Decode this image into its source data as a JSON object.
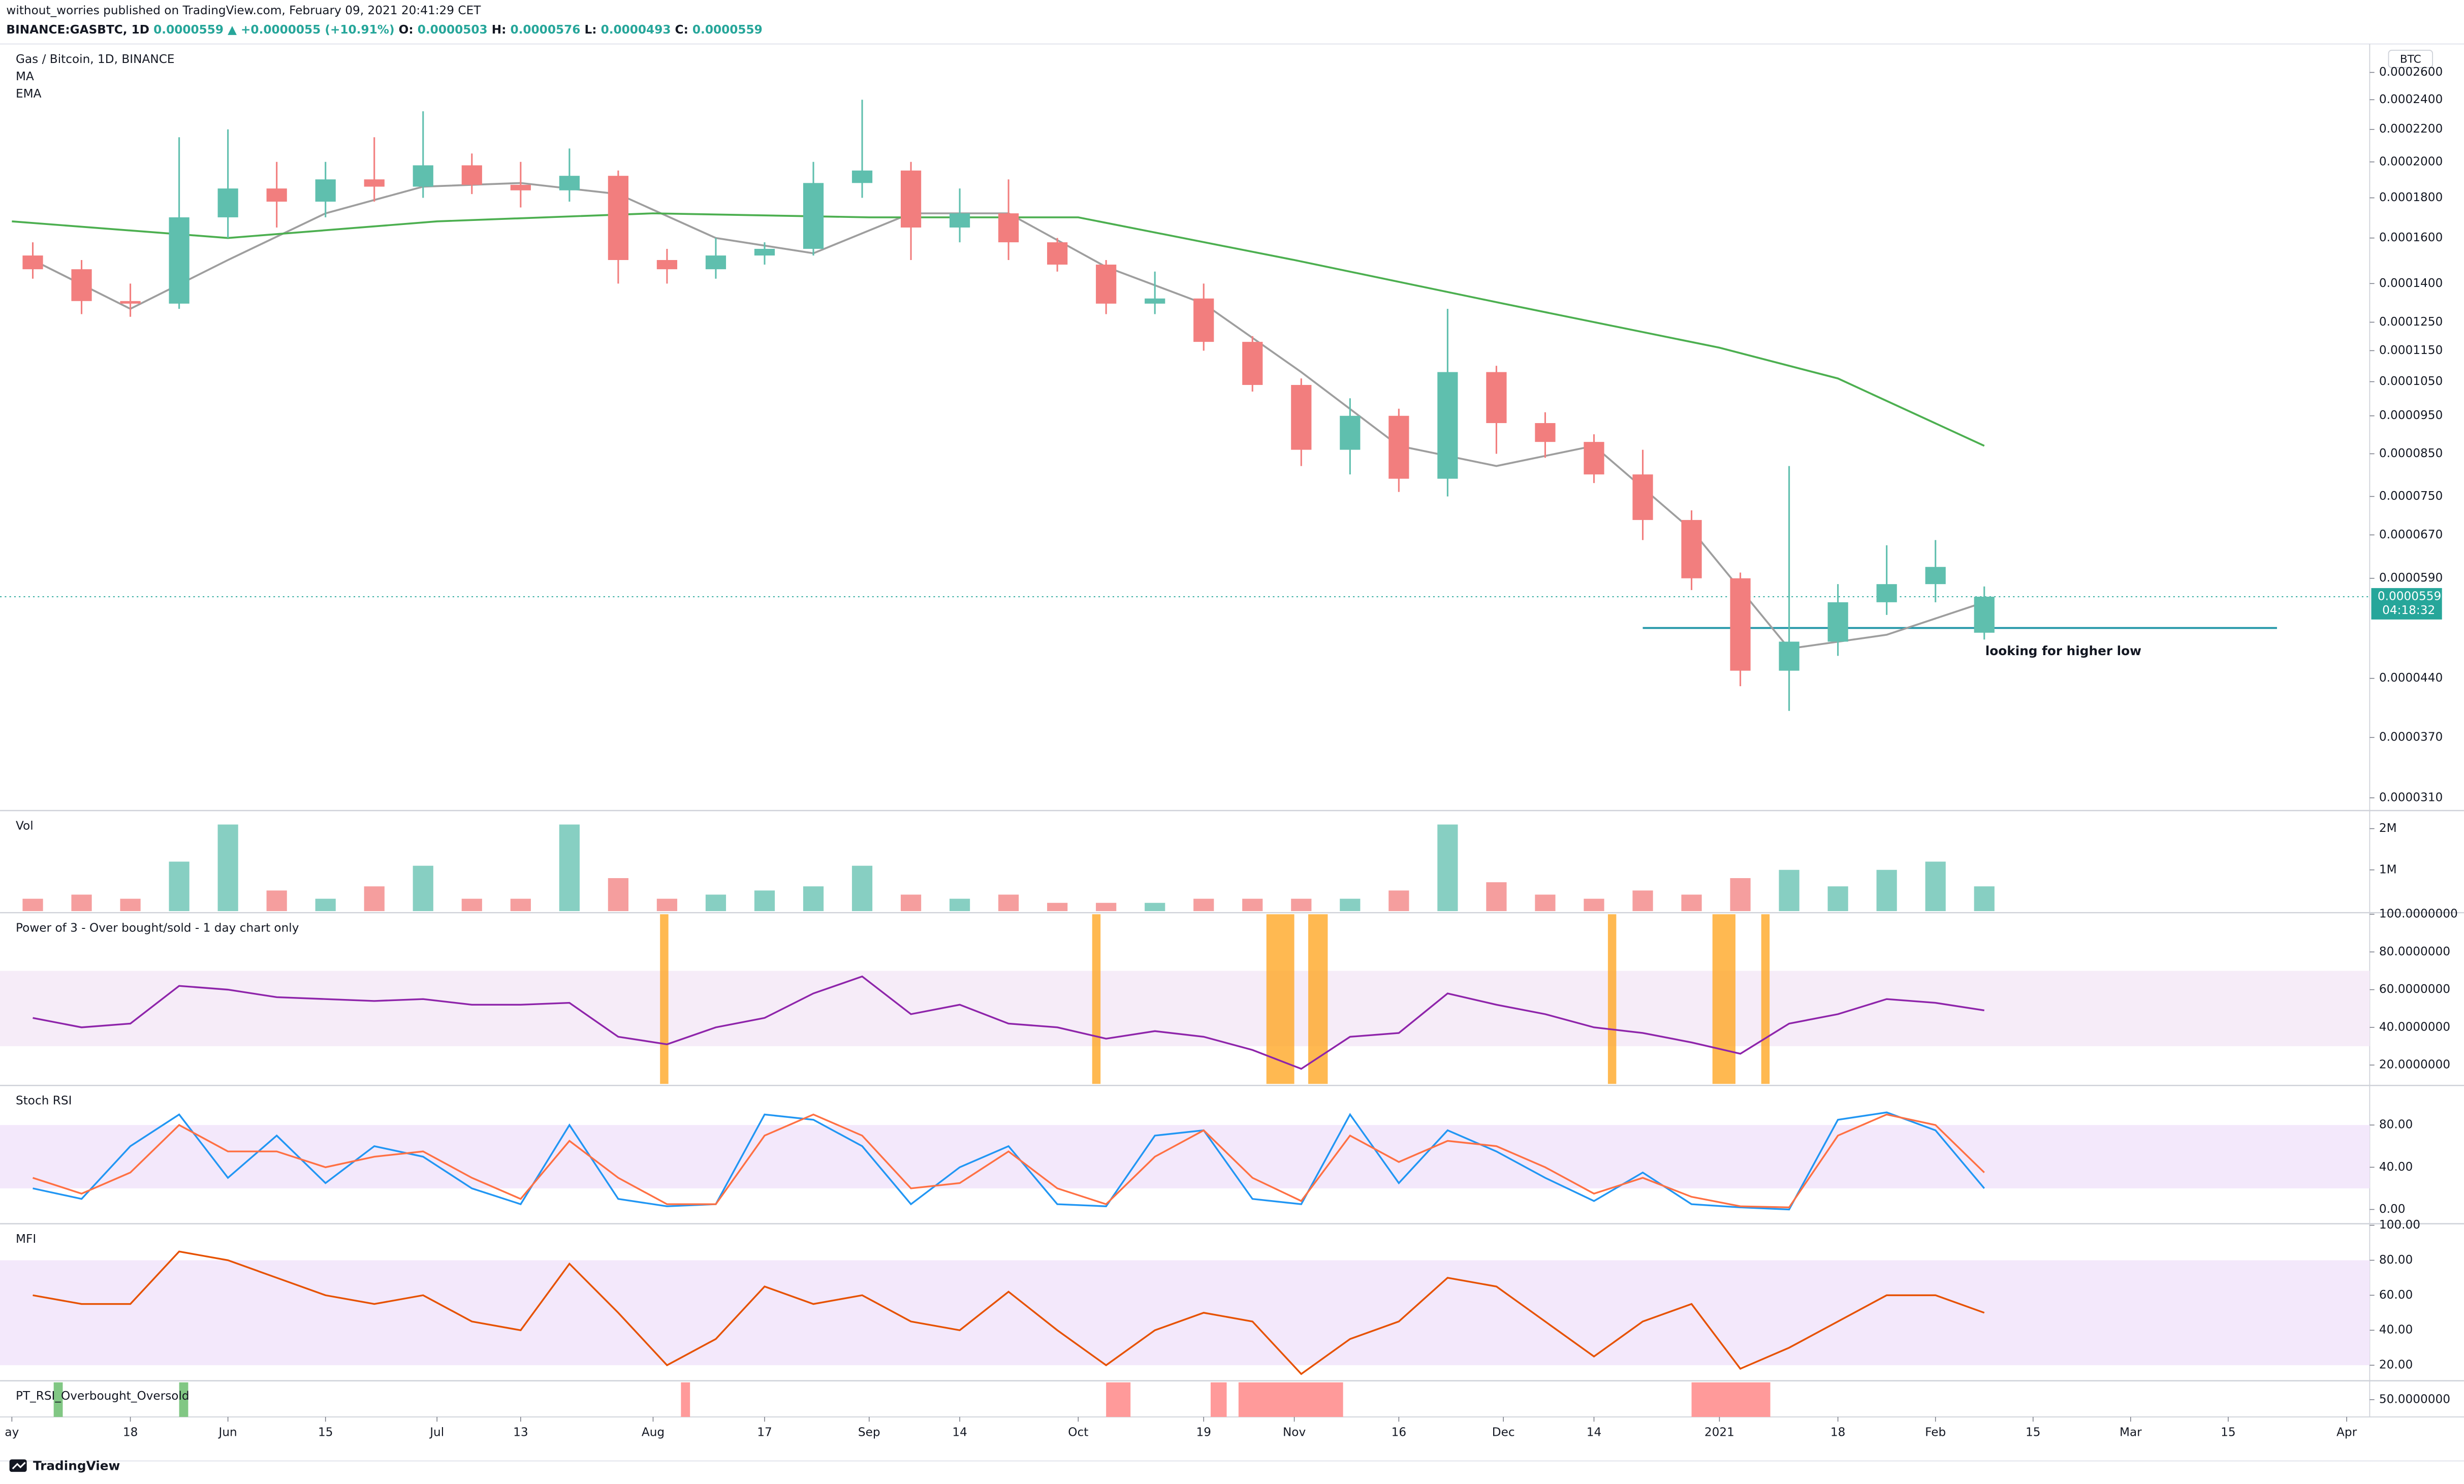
{
  "header": {
    "publisher": "without_worries published on TradingView.com, February 09, 2021 20:41:29 CET",
    "symbol": "BINANCE:GASBTC, 1D",
    "last": "0.0000559",
    "change": "▲ +0.0000055 (+10.91%)",
    "ohlc": [
      "O:",
      "0.0000503",
      "H:",
      "0.0000576",
      "L:",
      "0.0000493",
      "C:",
      "0.0000559"
    ]
  },
  "footer": {
    "logo": "TradingView"
  },
  "chart_data": {
    "type": "candlestick",
    "title": "Gas / Bitcoin, 1D, BINANCE",
    "currency": "BTC",
    "log_scale": true,
    "ylim": [
      3e-05,
      0.00028
    ],
    "yticks": [
      {
        "value": 0.00026,
        "label": "0.0002600"
      },
      {
        "value": 0.00024,
        "label": "0.0002400"
      },
      {
        "value": 0.00022,
        "label": "0.0002200"
      },
      {
        "value": 0.0002,
        "label": "0.0002000"
      },
      {
        "value": 0.00018,
        "label": "0.0001800"
      },
      {
        "value": 0.00016,
        "label": "0.0001600"
      },
      {
        "value": 0.00014,
        "label": "0.0001400"
      },
      {
        "value": 0.000125,
        "label": "0.0001250"
      },
      {
        "value": 0.000115,
        "label": "0.0001150"
      },
      {
        "value": 0.000105,
        "label": "0.0001050"
      },
      {
        "value": 9.5e-05,
        "label": "0.0000950"
      },
      {
        "value": 8.5e-05,
        "label": "0.0000850"
      },
      {
        "value": 7.5e-05,
        "label": "0.0000750"
      },
      {
        "value": 6.7e-05,
        "label": "0.0000670"
      },
      {
        "value": 5.9e-05,
        "label": "0.0000590"
      },
      {
        "value": 4.4e-05,
        "label": "0.0000440"
      },
      {
        "value": 3.7e-05,
        "label": "0.0000370"
      },
      {
        "value": 3.1e-05,
        "label": "0.0000310"
      }
    ],
    "xlim": [
      -1.7,
      338.3
    ],
    "xticks": [
      {
        "value": 0,
        "label": "ay"
      },
      {
        "value": 17,
        "label": "18"
      },
      {
        "value": 31,
        "label": "Jun"
      },
      {
        "value": 45,
        "label": "15"
      },
      {
        "value": 61,
        "label": "Jul"
      },
      {
        "value": 73,
        "label": "13"
      },
      {
        "value": 92,
        "label": "Aug"
      },
      {
        "value": 108,
        "label": "17"
      },
      {
        "value": 123,
        "label": "Sep"
      },
      {
        "value": 136,
        "label": "14"
      },
      {
        "value": 153,
        "label": "Oct"
      },
      {
        "value": 171,
        "label": "19"
      },
      {
        "value": 184,
        "label": "Nov"
      },
      {
        "value": 199,
        "label": "16"
      },
      {
        "value": 214,
        "label": "Dec"
      },
      {
        "value": 227,
        "label": "14"
      },
      {
        "value": 245,
        "label": "2021"
      },
      {
        "value": 262,
        "label": "18"
      },
      {
        "value": 276,
        "label": "Feb"
      },
      {
        "value": 290,
        "label": "15"
      },
      {
        "value": 304,
        "label": "Mar"
      },
      {
        "value": 318,
        "label": "15"
      },
      {
        "value": 335,
        "label": "Apr"
      }
    ],
    "x": [
      3,
      10,
      17,
      24,
      31,
      38,
      45,
      52,
      59,
      66,
      73,
      80,
      87,
      94,
      101,
      108,
      115,
      122,
      129,
      136,
      143,
      150,
      157,
      164,
      171,
      178,
      185,
      192,
      199,
      206,
      213,
      220,
      227,
      234,
      241,
      248,
      255,
      262,
      269,
      276,
      283
    ],
    "open": [
      0.000152,
      0.000146,
      0.000133,
      0.000132,
      0.00017,
      0.000185,
      0.000178,
      0.00019,
      0.000186,
      0.000198,
      0.000187,
      0.000184,
      0.000192,
      0.00015,
      0.000146,
      0.000152,
      0.000155,
      0.000188,
      0.000195,
      0.000165,
      0.000172,
      0.000158,
      0.000148,
      0.000132,
      0.000134,
      0.000118,
      0.000104,
      8.6e-05,
      9.5e-05,
      7.9e-05,
      0.000108,
      9.3e-05,
      8.8e-05,
      8e-05,
      7e-05,
      5.9e-05,
      4.5e-05,
      4.9e-05,
      5.5e-05,
      5.8e-05,
      5.03e-05
    ],
    "high": [
      0.000158,
      0.00015,
      0.00014,
      0.000215,
      0.00022,
      0.0002,
      0.0002,
      0.000215,
      0.000232,
      0.000205,
      0.0002,
      0.000208,
      0.000195,
      0.000155,
      0.00016,
      0.000158,
      0.0002,
      0.00024,
      0.0002,
      0.000185,
      0.00019,
      0.00016,
      0.00015,
      0.000145,
      0.00014,
      0.00012,
      0.000106,
      0.0001,
      9.7e-05,
      0.00013,
      0.00011,
      9.6e-05,
      9e-05,
      8.6e-05,
      7.2e-05,
      6e-05,
      8.2e-05,
      5.8e-05,
      6.5e-05,
      6.6e-05,
      5.76e-05
    ],
    "low": [
      0.000142,
      0.000128,
      0.000127,
      0.00013,
      0.00016,
      0.000165,
      0.00017,
      0.000178,
      0.00018,
      0.000182,
      0.000175,
      0.000178,
      0.00014,
      0.00014,
      0.000142,
      0.000148,
      0.000152,
      0.00018,
      0.00015,
      0.000158,
      0.00015,
      0.000145,
      0.000128,
      0.000128,
      0.000115,
      0.000102,
      8.2e-05,
      8e-05,
      7.6e-05,
      7.5e-05,
      8.5e-05,
      8.4e-05,
      7.8e-05,
      6.6e-05,
      5.7e-05,
      4.3e-05,
      4e-05,
      4.7e-05,
      5.3e-05,
      5.5e-05,
      4.93e-05
    ],
    "close": [
      0.000146,
      0.000133,
      0.000132,
      0.00017,
      0.000185,
      0.000178,
      0.00019,
      0.000186,
      0.000198,
      0.000187,
      0.000184,
      0.000192,
      0.00015,
      0.000146,
      0.000152,
      0.000155,
      0.000188,
      0.000195,
      0.000165,
      0.000172,
      0.000158,
      0.000148,
      0.000132,
      0.000134,
      0.000118,
      0.000104,
      8.6e-05,
      9.5e-05,
      7.9e-05,
      0.000108,
      9.3e-05,
      8.8e-05,
      8e-05,
      7e-05,
      5.9e-05,
      4.5e-05,
      4.9e-05,
      5.5e-05,
      5.8e-05,
      6.1e-05,
      5.59e-05
    ],
    "up_color": "#5fbfae",
    "down_color": "#f27e7e",
    "overlays": [
      {
        "name": "MA",
        "color": "#9e9e9e",
        "x": [
          3,
          17,
          31,
          45,
          59,
          73,
          87,
          101,
          115,
          129,
          143,
          157,
          171,
          185,
          199,
          213,
          227,
          241,
          255,
          269,
          283
        ],
        "values": [
          0.00015,
          0.00013,
          0.00015,
          0.000172,
          0.000186,
          0.000188,
          0.000182,
          0.00016,
          0.000153,
          0.000172,
          0.000172,
          0.000147,
          0.000132,
          0.000108,
          8.7e-05,
          8.2e-05,
          8.7e-05,
          6.8e-05,
          4.8e-05,
          5e-05,
          5.5e-05
        ]
      },
      {
        "name": "EMA",
        "color": "#4caf50",
        "x": [
          0,
          31,
          61,
          92,
          123,
          153,
          184,
          214,
          245,
          262,
          283
        ],
        "values": [
          0.000168,
          0.00016,
          0.000168,
          0.000172,
          0.00017,
          0.00017,
          0.00015,
          0.000132,
          0.000116,
          0.000106,
          8.7e-05
        ]
      }
    ],
    "price_tag": {
      "value": 5.59e-05,
      "label": "0.0000559",
      "color": "#26a69a"
    },
    "countdown": "04:18:32",
    "annotation": {
      "text": "looking for higher low",
      "level": 5.1e-05,
      "x": [
        234,
        325
      ],
      "color": "#2196a8"
    },
    "panes": [
      {
        "type": "bar",
        "title": "Vol",
        "ylim": [
          0,
          2400000
        ],
        "yticks": [
          {
            "value": 2000000,
            "label": "2M"
          },
          {
            "value": 1000000,
            "label": "1M"
          }
        ],
        "values": [
          300000,
          400000,
          300000,
          1200000,
          2100000,
          500000,
          300000,
          600000,
          1100000,
          300000,
          300000,
          2100000,
          800000,
          300000,
          400000,
          500000,
          600000,
          1100000,
          400000,
          300000,
          400000,
          200000,
          200000,
          200000,
          300000,
          300000,
          300000,
          300000,
          500000,
          2100000,
          700000,
          400000,
          300000,
          500000,
          400000,
          800000,
          1000000,
          600000,
          1000000,
          1200000,
          600000
        ]
      },
      {
        "type": "line",
        "title": "Power of 3 - Over bought/sold - 1 day chart only",
        "ylim": [
          10,
          100
        ],
        "yticks": [
          {
            "value": 100,
            "label": "100.0000000"
          },
          {
            "value": 80,
            "label": "80.0000000"
          },
          {
            "value": 60,
            "label": "60.0000000"
          },
          {
            "value": 40,
            "label": "40.0000000"
          },
          {
            "value": 20,
            "label": "20.0000000"
          }
        ],
        "band": [
          30,
          70
        ],
        "band_color": "#f6ecf8",
        "highlights": {
          "color": "#ffa726",
          "ranges": [
            [
              93,
              94.2
            ],
            [
              155,
              156.2
            ],
            [
              180,
              184
            ],
            [
              186,
              188.8
            ],
            [
              229,
              230.2
            ],
            [
              244,
              247.3
            ],
            [
              251,
              252.2
            ]
          ]
        },
        "series": [
          {
            "color": "#8e24aa",
            "values": [
              45,
              40,
              42,
              62,
              60,
              56,
              55,
              54,
              55,
              52,
              52,
              53,
              35,
              31,
              40,
              45,
              58,
              67,
              47,
              52,
              42,
              40,
              34,
              38,
              35,
              28,
              18,
              35,
              37,
              58,
              52,
              47,
              40,
              37,
              32,
              26,
              42,
              47,
              55,
              53,
              49
            ]
          }
        ]
      },
      {
        "type": "line",
        "title": "Stoch RSI",
        "ylim": [
          -12,
          116
        ],
        "yticks": [
          {
            "value": 80,
            "label": "80.00"
          },
          {
            "value": 40,
            "label": "40.00"
          },
          {
            "value": 0,
            "label": "0.00"
          }
        ],
        "band": [
          20,
          80
        ],
        "band_color": "#f3e8fb",
        "series": [
          {
            "color": "#2196f3",
            "values": [
              20,
              10,
              60,
              90,
              30,
              70,
              25,
              60,
              50,
              20,
              5,
              80,
              10,
              3,
              5,
              90,
              85,
              60,
              5,
              40,
              60,
              5,
              3,
              70,
              75,
              10,
              5,
              90,
              25,
              75,
              55,
              30,
              8,
              35,
              5,
              2,
              0,
              85,
              92,
              75,
              20
            ]
          },
          {
            "color": "#ff7043",
            "values": [
              30,
              15,
              35,
              80,
              55,
              55,
              40,
              50,
              55,
              30,
              10,
              65,
              30,
              5,
              5,
              70,
              90,
              70,
              20,
              25,
              55,
              20,
              5,
              50,
              75,
              30,
              8,
              70,
              45,
              65,
              60,
              40,
              15,
              30,
              12,
              3,
              2,
              70,
              90,
              80,
              35
            ]
          }
        ]
      },
      {
        "type": "line",
        "title": "MFI",
        "ylim": [
          12,
          100
        ],
        "yticks": [
          {
            "value": 100,
            "label": "100.00"
          },
          {
            "value": 80,
            "label": "80.00"
          },
          {
            "value": 60,
            "label": "60.00"
          },
          {
            "value": 40,
            "label": "40.00"
          },
          {
            "value": 20,
            "label": "20.00"
          }
        ],
        "band": [
          20,
          80
        ],
        "band_color": "#f3e8fb",
        "series": [
          {
            "color": "#e65100",
            "values": [
              60,
              55,
              55,
              85,
              80,
              70,
              60,
              55,
              60,
              45,
              40,
              78,
              50,
              20,
              35,
              65,
              55,
              60,
              45,
              40,
              62,
              40,
              20,
              40,
              50,
              45,
              15,
              35,
              45,
              70,
              65,
              45,
              25,
              45,
              55,
              18,
              30,
              45,
              60,
              60,
              50
            ]
          }
        ]
      },
      {
        "type": "signals",
        "title": "PT_RSI_Overbought_Oversold",
        "ylim": [
          0,
          100
        ],
        "yticks": [
          {
            "value": 50,
            "label": "50.0000000"
          }
        ],
        "signals": [
          {
            "color": "#81c784",
            "ranges": [
              [
                6,
                7.3
              ],
              [
                24,
                25.3
              ]
            ]
          },
          {
            "color": "#ff9a9a",
            "ranges": [
              [
                96,
                97.3
              ],
              [
                157,
                160.5
              ],
              [
                172,
                174.3
              ],
              [
                176,
                191
              ],
              [
                241,
                252.3
              ]
            ]
          }
        ]
      }
    ]
  }
}
